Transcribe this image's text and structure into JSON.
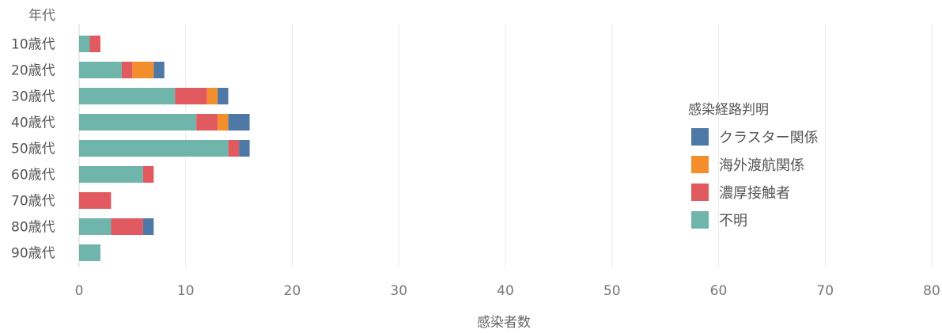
{
  "chart_data": {
    "type": "bar",
    "orientation": "horizontal",
    "stacked": true,
    "ylabel": "年代",
    "xlabel": "感染者数",
    "xlim": [
      0,
      80
    ],
    "xticks": [
      0,
      10,
      20,
      30,
      40,
      50,
      60,
      70,
      80
    ],
    "grid": true,
    "legend_title": "感染経路判明",
    "legend_position": "right",
    "categories": [
      "10歳代",
      "20歳代",
      "30歳代",
      "40歳代",
      "50歳代",
      "60歳代",
      "70歳代",
      "80歳代",
      "90歳代"
    ],
    "series": [
      {
        "name": "不明",
        "color": "#6fb5ac",
        "values": [
          1,
          4,
          9,
          11,
          14,
          6,
          0,
          3,
          2
        ]
      },
      {
        "name": "濃厚接触者",
        "color": "#e05a5f",
        "values": [
          1,
          1,
          3,
          2,
          1,
          1,
          3,
          3,
          0
        ]
      },
      {
        "name": "海外渡航関係",
        "color": "#f28e2b",
        "values": [
          0,
          2,
          1,
          1,
          0,
          0,
          0,
          0,
          0
        ]
      },
      {
        "name": "クラスター関係",
        "color": "#4e79a7",
        "values": [
          0,
          1,
          1,
          2,
          1,
          0,
          0,
          1,
          0
        ]
      }
    ],
    "legend_order": [
      "クラスター関係",
      "海外渡航関係",
      "濃厚接触者",
      "不明"
    ]
  }
}
